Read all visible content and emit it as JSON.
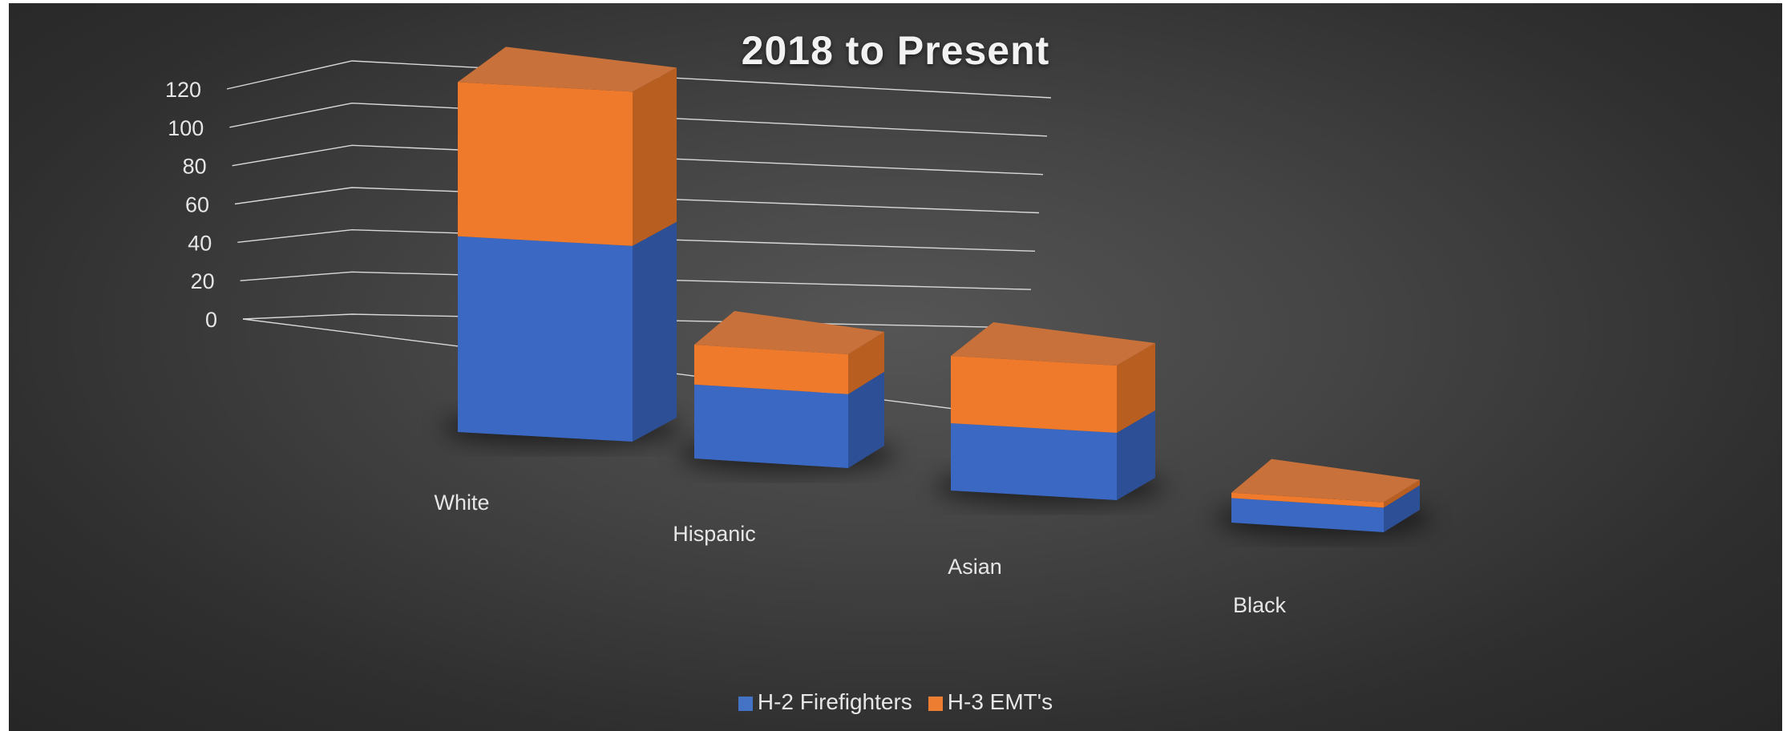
{
  "chart_data": {
    "type": "bar",
    "stacked": true,
    "style": "3d-perspective",
    "title": "2018 to Present",
    "categories": [
      "White",
      "Hispanic",
      "Asian",
      "Black"
    ],
    "series": [
      {
        "name": "H-2 Firefighters",
        "values": [
          66,
          26,
          24,
          9
        ],
        "color": "#4472C4"
      },
      {
        "name": "H-3 EMT's",
        "values": [
          52,
          14,
          24,
          2
        ],
        "color": "#ED7D31"
      }
    ],
    "yticks": [
      "0",
      "20",
      "40",
      "60",
      "80",
      "100",
      "120"
    ],
    "ylim": [
      0,
      120
    ],
    "grid": true,
    "legend_position": "bottom",
    "background": "#3a3a3a"
  }
}
